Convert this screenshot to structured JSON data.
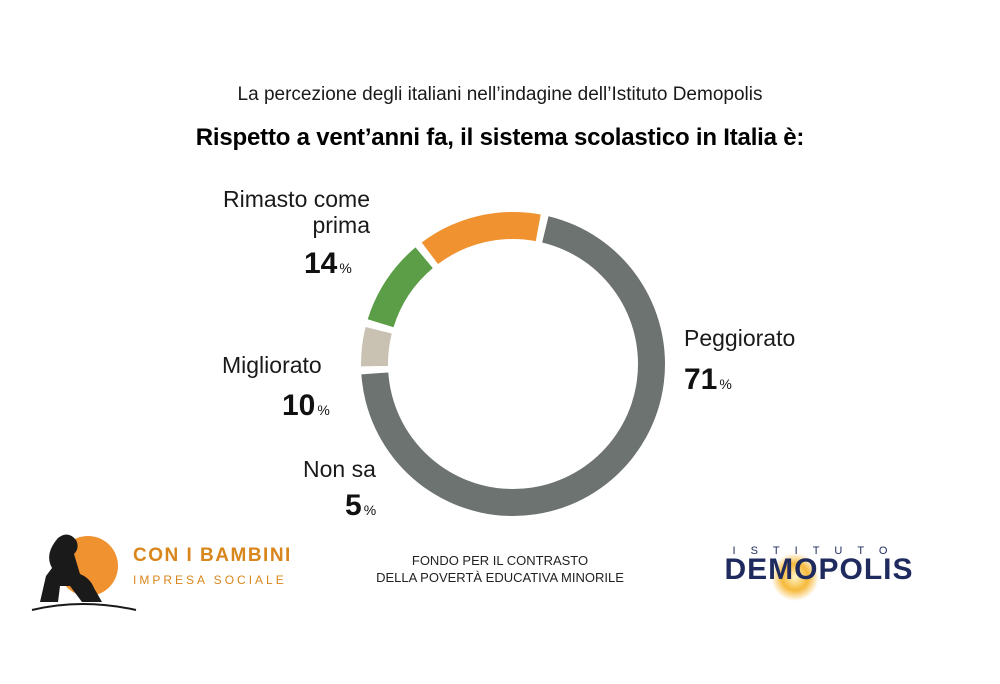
{
  "subtitle": "La percezione degli italiani nell’indagine dell’Istituto Demopolis",
  "title": "Rispetto a vent’anni fa, il sistema scolastico in Italia è:",
  "chart_data": {
    "type": "pie",
    "donut": true,
    "title": "Rispetto a vent’anni fa, il sistema scolastico in Italia è:",
    "categories": [
      "Peggiorato",
      "Non sa",
      "Migliorato",
      "Rimasto come prima"
    ],
    "values": [
      71,
      5,
      10,
      14
    ],
    "unit": "%",
    "colors": [
      "#6d7370",
      "#c9c2b3",
      "#5c9e47",
      "#f0922f"
    ],
    "labels": {
      "peggiorato": {
        "name": "Peggiorato",
        "value": "71",
        "unit": "%"
      },
      "non_sa": {
        "name": "Non sa",
        "value": "5",
        "unit": "%"
      },
      "migliorato": {
        "name": "Migliorato",
        "value": "10",
        "unit": "%"
      },
      "rimasto_line1": "Rimasto come",
      "rimasto_line2": "prima",
      "rimasto_value": "14",
      "rimasto_unit": "%"
    }
  },
  "footer": {
    "center_line1": "FONDO PER IL CONTRASTO",
    "center_line2": "DELLA POVERTÀ EDUCATIVA MINORILE",
    "left_logo_name": "CON I BAMBINI",
    "left_logo_sub": "IMPRESA SOCIALE",
    "right_logo_top": "ISTITUTO",
    "right_logo_main": "DEMOPOLIS"
  }
}
